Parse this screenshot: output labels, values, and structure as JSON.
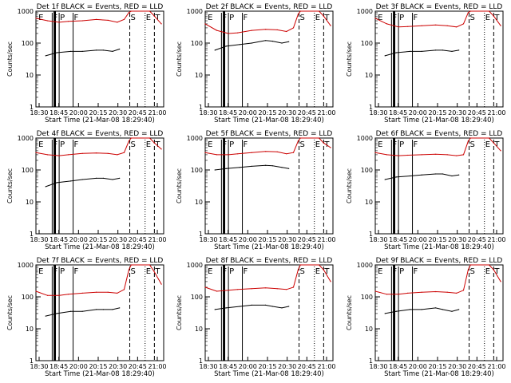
{
  "chart_data": {
    "type": "line",
    "layout": "3x3 grid of small-multiple panels",
    "scale": "log-y",
    "ylim": [
      1,
      1000
    ],
    "y_ticks": [
      "1",
      "10",
      "100",
      "1000"
    ],
    "x_ticks": [
      "18:30",
      "18:45",
      "20:00",
      "20:15",
      "20:30",
      "20:45",
      "21:00"
    ],
    "xlabel": "Start Time (21-Mar-08 18:29:40)",
    "ylabel": "Counts/sec",
    "series_colors": {
      "events": "#000000",
      "lld": "#cc0000"
    },
    "panels": [
      {
        "title": "Det 1f BLACK = Events, RED = LLD",
        "events": [
          [
            18.71,
            40
          ],
          [
            18.95,
            50
          ],
          [
            19.25,
            55
          ],
          [
            19.5,
            55
          ],
          [
            19.8,
            60
          ],
          [
            19.95,
            60
          ],
          [
            20.15,
            55
          ],
          [
            20.3,
            65
          ]
        ],
        "lld": [
          [
            18.5,
            600
          ],
          [
            18.75,
            500
          ],
          [
            19.0,
            450
          ],
          [
            19.2,
            480
          ],
          [
            19.5,
            500
          ],
          [
            19.8,
            550
          ],
          [
            20.05,
            520
          ],
          [
            20.25,
            450
          ],
          [
            20.4,
            550
          ],
          [
            20.5,
            900
          ],
          [
            20.55,
            1000
          ],
          [
            20.95,
            1000
          ],
          [
            21.05,
            700
          ],
          [
            21.2,
            400
          ]
        ]
      },
      {
        "title": "Det 2f BLACK = Events, RED = LLD",
        "events": [
          [
            18.71,
            60
          ],
          [
            18.95,
            80
          ],
          [
            19.25,
            90
          ],
          [
            19.5,
            100
          ],
          [
            19.8,
            120
          ],
          [
            19.95,
            115
          ],
          [
            20.15,
            100
          ],
          [
            20.3,
            110
          ]
        ],
        "lld": [
          [
            18.5,
            400
          ],
          [
            18.75,
            250
          ],
          [
            19.0,
            200
          ],
          [
            19.2,
            210
          ],
          [
            19.5,
            250
          ],
          [
            19.8,
            270
          ],
          [
            20.05,
            260
          ],
          [
            20.25,
            230
          ],
          [
            20.4,
            300
          ],
          [
            20.5,
            800
          ],
          [
            20.55,
            1000
          ],
          [
            20.95,
            1000
          ],
          [
            21.05,
            700
          ],
          [
            21.2,
            350
          ]
        ]
      },
      {
        "title": "Det 3f BLACK = Events, RED = LLD",
        "events": [
          [
            18.71,
            40
          ],
          [
            18.95,
            50
          ],
          [
            19.25,
            55
          ],
          [
            19.5,
            55
          ],
          [
            19.8,
            60
          ],
          [
            19.95,
            60
          ],
          [
            20.15,
            55
          ],
          [
            20.3,
            60
          ]
        ],
        "lld": [
          [
            18.5,
            600
          ],
          [
            18.75,
            400
          ],
          [
            19.0,
            320
          ],
          [
            19.2,
            330
          ],
          [
            19.5,
            350
          ],
          [
            19.8,
            370
          ],
          [
            20.05,
            350
          ],
          [
            20.25,
            320
          ],
          [
            20.4,
            400
          ],
          [
            20.5,
            900
          ],
          [
            20.55,
            1000
          ],
          [
            20.95,
            1000
          ],
          [
            21.05,
            700
          ],
          [
            21.2,
            350
          ]
        ]
      },
      {
        "title": "Det 4f BLACK = Events, RED = LLD",
        "events": [
          [
            18.71,
            30
          ],
          [
            18.95,
            40
          ],
          [
            19.25,
            45
          ],
          [
            19.5,
            50
          ],
          [
            19.8,
            55
          ],
          [
            19.95,
            55
          ],
          [
            20.15,
            50
          ],
          [
            20.3,
            55
          ]
        ],
        "lld": [
          [
            18.5,
            350
          ],
          [
            18.75,
            300
          ],
          [
            19.0,
            280
          ],
          [
            19.2,
            300
          ],
          [
            19.5,
            330
          ],
          [
            19.8,
            340
          ],
          [
            20.05,
            330
          ],
          [
            20.25,
            300
          ],
          [
            20.4,
            350
          ],
          [
            20.5,
            800
          ],
          [
            20.55,
            1000
          ],
          [
            20.95,
            1000
          ],
          [
            21.05,
            700
          ],
          [
            21.2,
            450
          ]
        ]
      },
      {
        "title": "Det 5f BLACK = Events, RED = LLD",
        "events": [
          [
            18.71,
            100
          ],
          [
            18.95,
            110
          ],
          [
            19.25,
            120
          ],
          [
            19.5,
            130
          ],
          [
            19.8,
            140
          ],
          [
            19.95,
            135
          ],
          [
            20.15,
            120
          ],
          [
            20.3,
            110
          ]
        ],
        "lld": [
          [
            18.5,
            350
          ],
          [
            18.75,
            300
          ],
          [
            19.0,
            300
          ],
          [
            19.2,
            320
          ],
          [
            19.5,
            350
          ],
          [
            19.8,
            380
          ],
          [
            20.05,
            370
          ],
          [
            20.25,
            320
          ],
          [
            20.4,
            350
          ],
          [
            20.5,
            800
          ],
          [
            20.55,
            1000
          ],
          [
            20.95,
            1000
          ],
          [
            21.05,
            700
          ],
          [
            21.2,
            500
          ]
        ]
      },
      {
        "title": "Det 6f BLACK = Events, RED = LLD",
        "events": [
          [
            18.71,
            50
          ],
          [
            18.95,
            60
          ],
          [
            19.25,
            65
          ],
          [
            19.5,
            70
          ],
          [
            19.8,
            75
          ],
          [
            19.95,
            75
          ],
          [
            20.15,
            65
          ],
          [
            20.3,
            70
          ]
        ],
        "lld": [
          [
            18.5,
            350
          ],
          [
            18.75,
            300
          ],
          [
            19.0,
            280
          ],
          [
            19.2,
            290
          ],
          [
            19.5,
            300
          ],
          [
            19.8,
            310
          ],
          [
            20.05,
            300
          ],
          [
            20.25,
            280
          ],
          [
            20.4,
            300
          ],
          [
            20.5,
            800
          ],
          [
            20.55,
            1000
          ],
          [
            20.95,
            1000
          ],
          [
            21.05,
            700
          ],
          [
            21.2,
            400
          ]
        ]
      },
      {
        "title": "Det 7f BLACK = Events, RED = LLD",
        "events": [
          [
            18.71,
            25
          ],
          [
            18.95,
            30
          ],
          [
            19.25,
            35
          ],
          [
            19.5,
            35
          ],
          [
            19.8,
            40
          ],
          [
            19.95,
            40
          ],
          [
            20.15,
            40
          ],
          [
            20.3,
            45
          ]
        ],
        "lld": [
          [
            18.5,
            150
          ],
          [
            18.75,
            110
          ],
          [
            19.0,
            110
          ],
          [
            19.2,
            120
          ],
          [
            19.5,
            130
          ],
          [
            19.8,
            140
          ],
          [
            20.05,
            140
          ],
          [
            20.25,
            130
          ],
          [
            20.4,
            170
          ],
          [
            20.5,
            700
          ],
          [
            20.55,
            1000
          ],
          [
            20.95,
            1000
          ],
          [
            21.05,
            600
          ],
          [
            21.2,
            250
          ]
        ]
      },
      {
        "title": "Det 8f BLACK = Events, RED = LLD",
        "events": [
          [
            18.71,
            40
          ],
          [
            18.95,
            45
          ],
          [
            19.25,
            50
          ],
          [
            19.5,
            55
          ],
          [
            19.8,
            55
          ],
          [
            19.95,
            50
          ],
          [
            20.15,
            45
          ],
          [
            20.3,
            50
          ]
        ],
        "lld": [
          [
            18.5,
            200
          ],
          [
            18.75,
            150
          ],
          [
            19.0,
            160
          ],
          [
            19.2,
            170
          ],
          [
            19.5,
            180
          ],
          [
            19.8,
            190
          ],
          [
            20.05,
            180
          ],
          [
            20.25,
            170
          ],
          [
            20.4,
            200
          ],
          [
            20.5,
            700
          ],
          [
            20.55,
            1000
          ],
          [
            20.95,
            1000
          ],
          [
            21.05,
            700
          ],
          [
            21.2,
            300
          ]
        ]
      },
      {
        "title": "Det 9f BLACK = Events, RED = LLD",
        "events": [
          [
            18.71,
            30
          ],
          [
            18.95,
            35
          ],
          [
            19.25,
            40
          ],
          [
            19.5,
            40
          ],
          [
            19.8,
            45
          ],
          [
            19.95,
            40
          ],
          [
            20.15,
            35
          ],
          [
            20.3,
            40
          ]
        ],
        "lld": [
          [
            18.5,
            150
          ],
          [
            18.75,
            120
          ],
          [
            19.0,
            120
          ],
          [
            19.2,
            130
          ],
          [
            19.5,
            140
          ],
          [
            19.8,
            145
          ],
          [
            20.05,
            140
          ],
          [
            20.25,
            130
          ],
          [
            20.4,
            160
          ],
          [
            20.5,
            700
          ],
          [
            20.55,
            1000
          ],
          [
            20.95,
            1000
          ],
          [
            21.05,
            700
          ],
          [
            21.2,
            300
          ]
        ]
      }
    ],
    "annotations": {
      "markers": [
        {
          "label": "E",
          "x": 18.52,
          "style": "none"
        },
        {
          "label": "F",
          "x": 18.85,
          "style": "solid"
        },
        {
          "label": "P",
          "x": 19.0,
          "style": "solid"
        },
        {
          "label": "F",
          "x": 19.3,
          "style": "solid"
        },
        {
          "label": "S",
          "x": 20.52,
          "style": "dashed"
        },
        {
          "label": "E",
          "x": 20.85,
          "style": "dotted"
        },
        {
          "label": "T",
          "x": 21.05,
          "style": "dashed"
        }
      ],
      "thick_band": [
        18.88,
        18.93
      ]
    }
  }
}
